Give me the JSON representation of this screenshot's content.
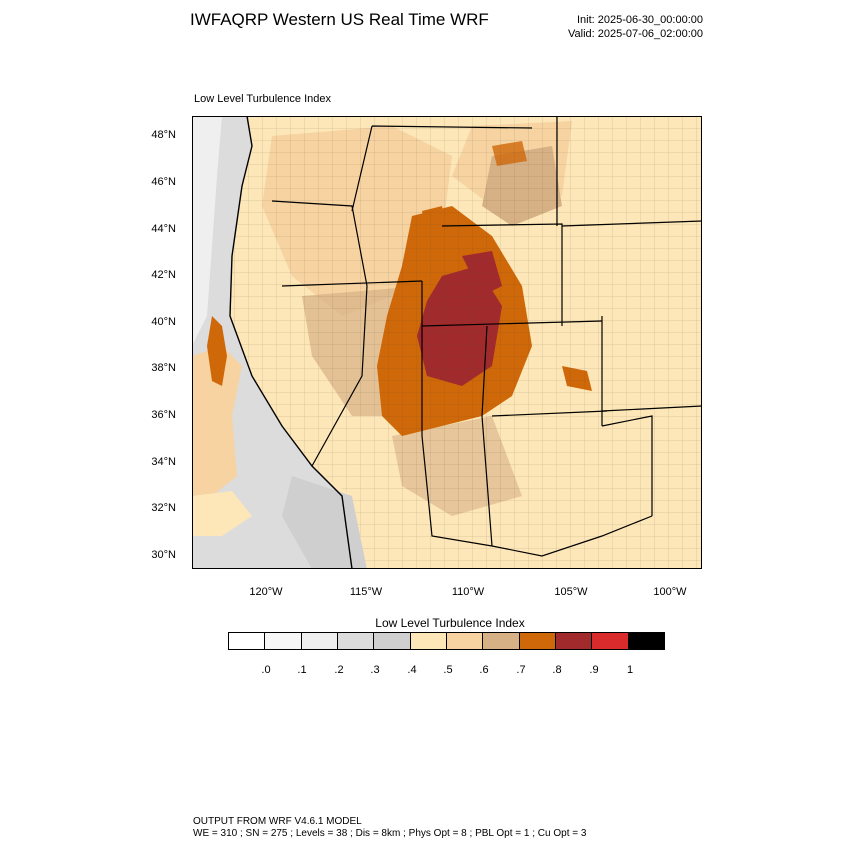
{
  "header": {
    "title": "IWFAQRP Western US Real Time WRF",
    "init": "Init: 2025-06-30_00:00:00",
    "valid": "Valid: 2025-07-06_02:00:00"
  },
  "map": {
    "label": "Low Level Turbulence Index",
    "lat_labels": [
      "48°N",
      "46°N",
      "44°N",
      "42°N",
      "40°N",
      "38°N",
      "36°N",
      "34°N",
      "32°N",
      "30°N"
    ],
    "lon_labels": [
      "120°W",
      "115°W",
      "110°W",
      "105°W",
      "100°W"
    ]
  },
  "colorbar": {
    "title": "Low Level Turbulence Index",
    "colors": [
      "#ffffff",
      "#f7f7f7",
      "#efefef",
      "#dcdcdc",
      "#cfcfcf",
      "#fde7b8",
      "#f6d3a1",
      "#d7b186",
      "#cf6809",
      "#a12b2c",
      "#d92a2c",
      "#000000"
    ],
    "ticks": [
      ".0",
      ".1",
      ".2",
      ".3",
      ".4",
      ".5",
      ".6",
      ".7",
      ".8",
      ".9",
      "1"
    ]
  },
  "footer": {
    "line1": "OUTPUT FROM WRF V4.6.1 MODEL",
    "line2": "WE = 310 ; SN = 275 ; Levels = 38 ; Dis = 8km ; Phys Opt = 8 ; PBL Opt = 1 ; Cu Opt = 3"
  }
}
